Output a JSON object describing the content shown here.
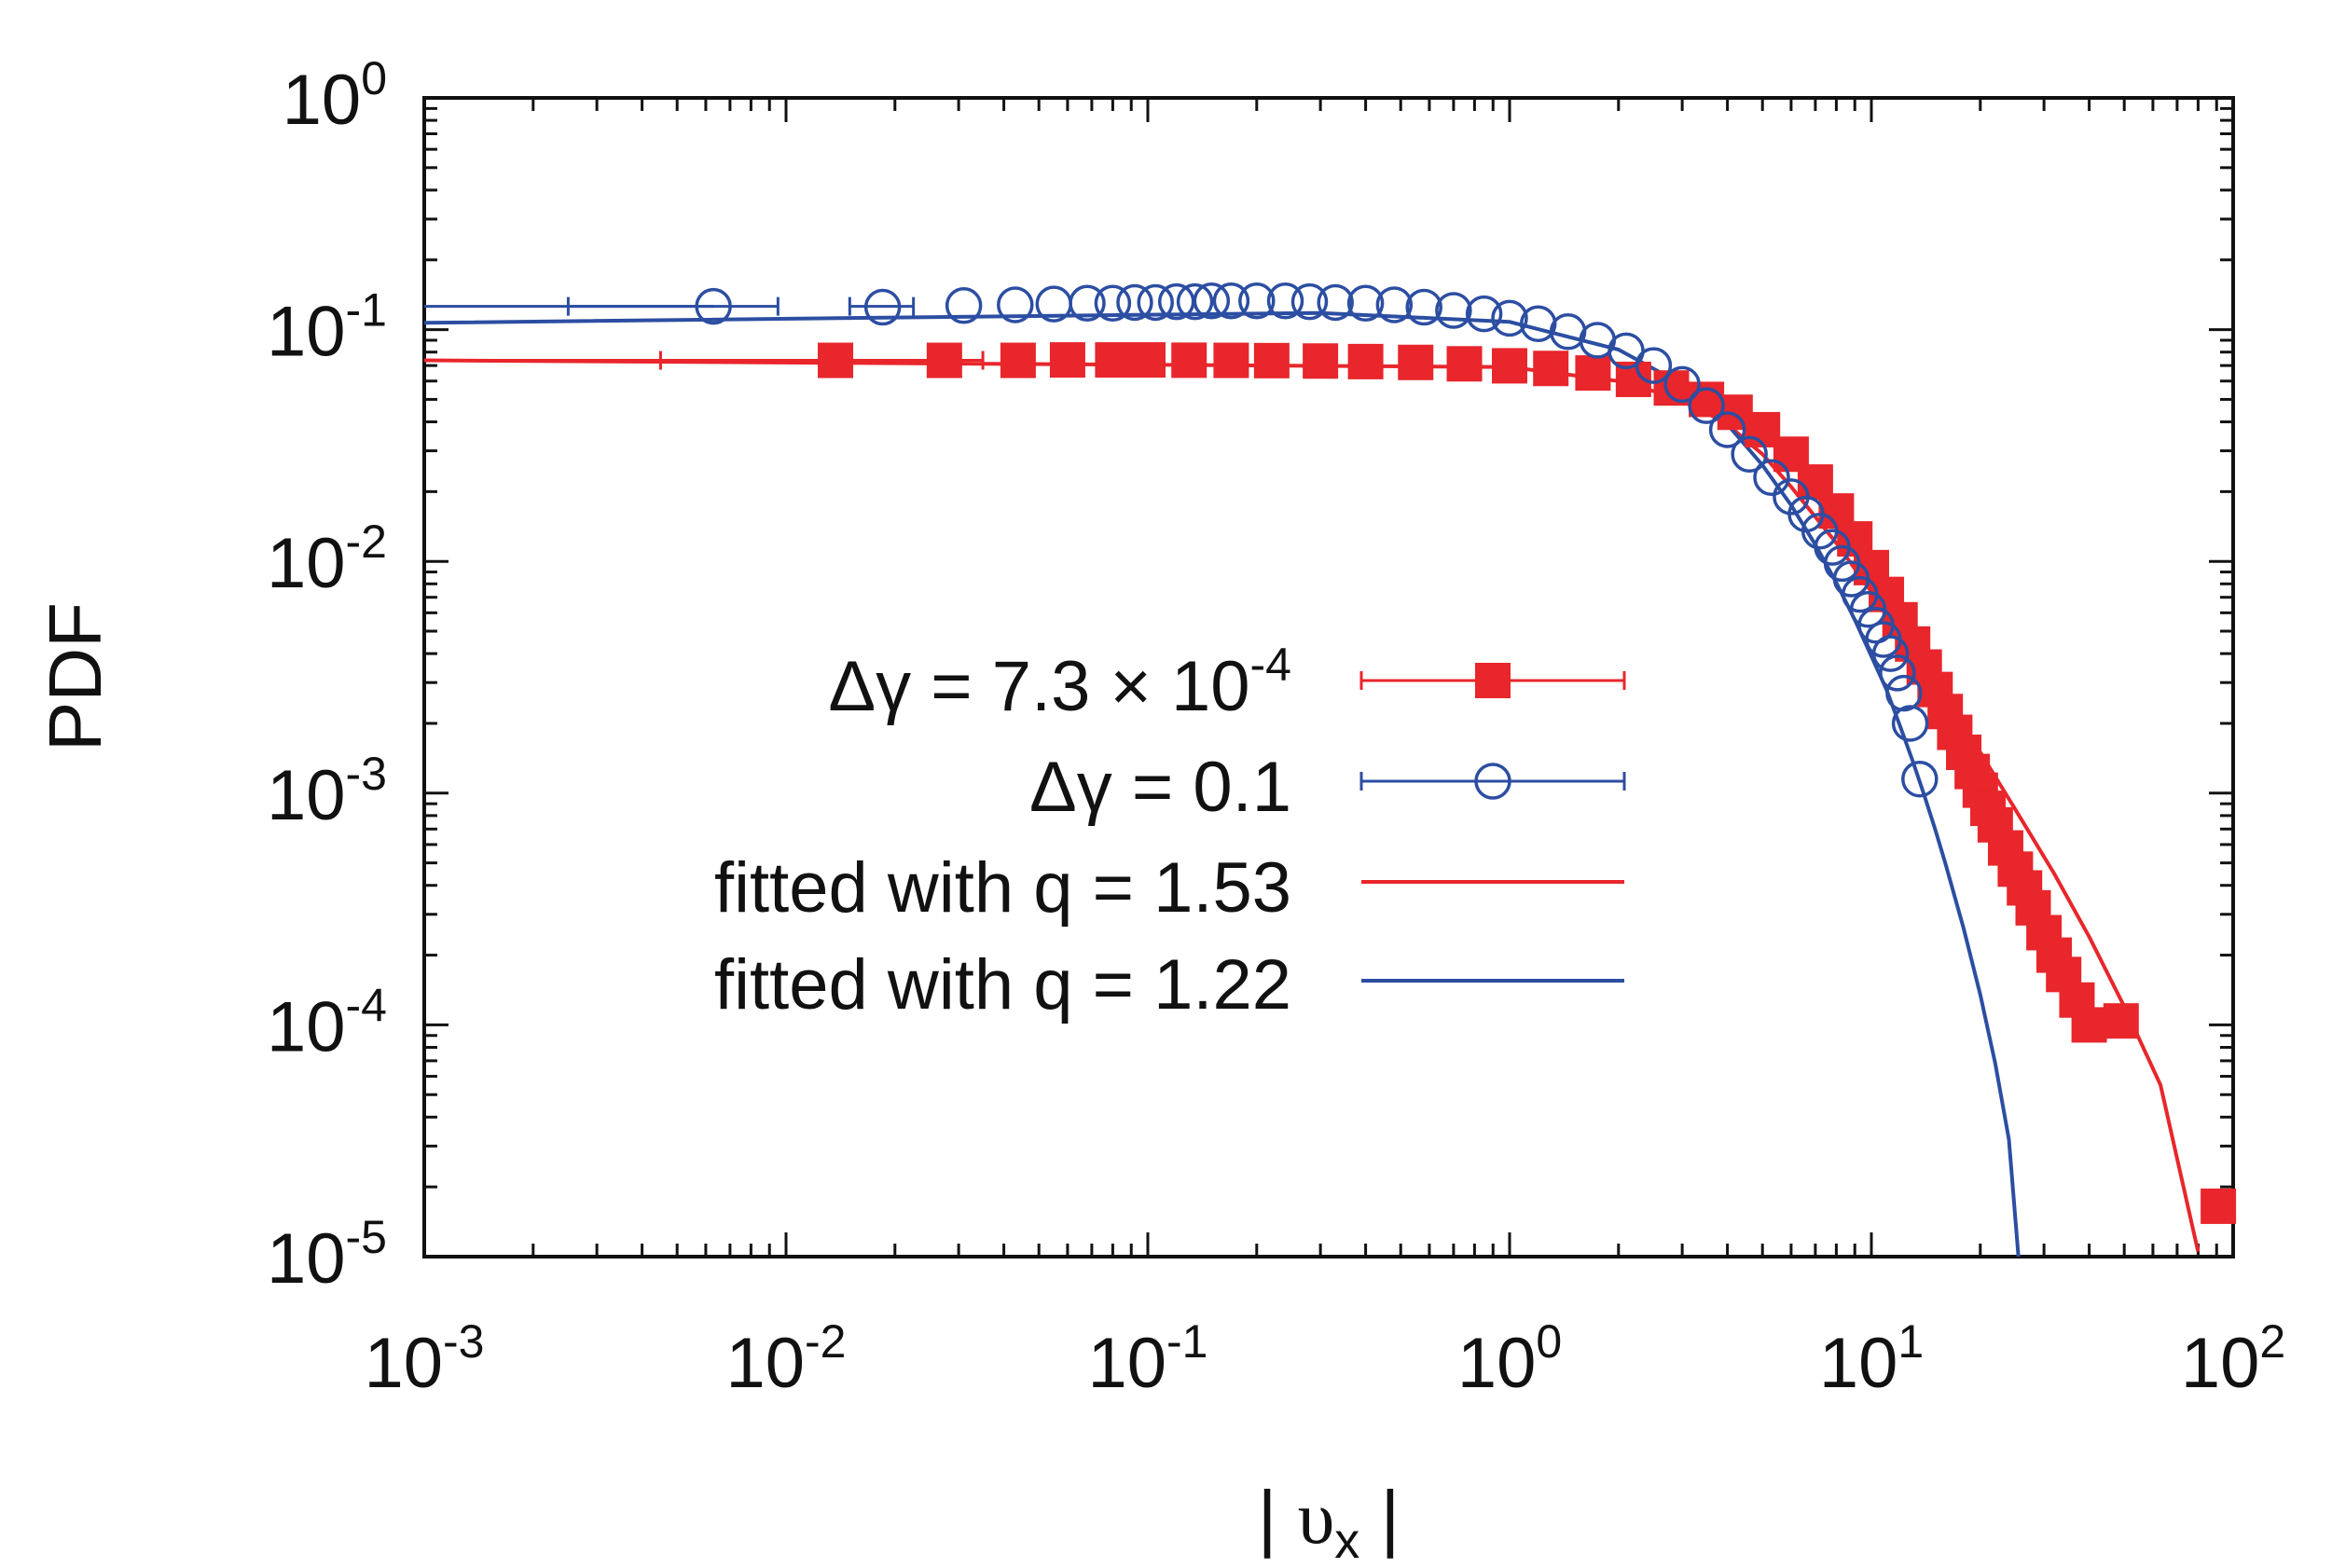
{
  "chart_data": {
    "type": "scatter",
    "title": "",
    "xlabel": "| υx |",
    "xlabel_parts": {
      "bar_left": "| ",
      "symbol": "υ",
      "subscript": "x",
      "bar_right": " |"
    },
    "ylabel": "PDF",
    "xscale": "log",
    "yscale": "log",
    "xlim": [
      0.001,
      100
    ],
    "ylim": [
      1e-05,
      1
    ],
    "grid": false,
    "legend_position": "center-left",
    "x_ticks": [
      {
        "value": 0.001,
        "base": "10",
        "exp": "-3"
      },
      {
        "value": 0.01,
        "base": "10",
        "exp": "-2"
      },
      {
        "value": 0.1,
        "base": "10",
        "exp": "-1"
      },
      {
        "value": 1,
        "base": "10",
        "exp": "0"
      },
      {
        "value": 10,
        "base": "10",
        "exp": "1"
      },
      {
        "value": 100,
        "base": "10",
        "exp": "2"
      }
    ],
    "y_ticks": [
      {
        "value": 1,
        "base": "10",
        "exp": "0"
      },
      {
        "value": 0.1,
        "base": "10",
        "exp": "-1"
      },
      {
        "value": 0.01,
        "base": "10",
        "exp": "-2"
      },
      {
        "value": 0.001,
        "base": "10",
        "exp": "-3"
      },
      {
        "value": 0.0001,
        "base": "10",
        "exp": "-4"
      },
      {
        "value": 1e-05,
        "base": "10",
        "exp": "-5"
      }
    ],
    "series": [
      {
        "name": "Δγ = 7.3 × 10-4",
        "legend_parts": {
          "main": "Δγ = 7.3 × 10",
          "exp": "-4"
        },
        "kind": "points",
        "marker": "filled-square",
        "color": "#e8262b",
        "x": [
          0.0137,
          0.0274,
          0.0438,
          0.06,
          0.08,
          0.1,
          0.13,
          0.17,
          0.22,
          0.3,
          0.4,
          0.55,
          0.75,
          1.0,
          1.3,
          1.7,
          2.2,
          2.8,
          3.5,
          4.2,
          5.0,
          6.0,
          7.0,
          8.0,
          9.0,
          10.0,
          11.0,
          12.0,
          13.0,
          14.0,
          15.0,
          16.0,
          17.0,
          18.0,
          19.0,
          20.0,
          21.0,
          22.0,
          23.5,
          25.0,
          26.5,
          28.0,
          30.0,
          32.0,
          34.0,
          37.0,
          40.0,
          49.0,
          91.0
        ],
        "y": [
          0.0737,
          0.0737,
          0.0737,
          0.074,
          0.074,
          0.074,
          0.0738,
          0.0737,
          0.0735,
          0.0732,
          0.0728,
          0.0722,
          0.0712,
          0.0698,
          0.068,
          0.065,
          0.061,
          0.056,
          0.05,
          0.044,
          0.037,
          0.029,
          0.022,
          0.0165,
          0.0125,
          0.0094,
          0.0072,
          0.0056,
          0.0044,
          0.0035,
          0.0028,
          0.00225,
          0.00183,
          0.0015,
          0.00124,
          0.00103,
          0.00086,
          0.00073,
          0.00058,
          0.00047,
          0.00039,
          0.00032,
          0.00025,
          0.0002,
          0.000165,
          0.000128,
          0.0001,
          0.000104,
          1.65e-05
        ],
        "x_err": [
          [
            0.0045,
            0.035
          ]
        ]
      },
      {
        "name": "Δγ = 0.1",
        "legend_parts": {
          "main": "Δγ = 0.1",
          "exp": ""
        },
        "kind": "points",
        "marker": "open-circle",
        "color": "#2c4ea2",
        "x": [
          0.0063,
          0.0185,
          0.031,
          0.043,
          0.055,
          0.068,
          0.08,
          0.092,
          0.105,
          0.12,
          0.135,
          0.15,
          0.17,
          0.2,
          0.24,
          0.28,
          0.33,
          0.4,
          0.48,
          0.58,
          0.7,
          0.85,
          1.0,
          1.2,
          1.45,
          1.75,
          2.1,
          2.5,
          3.0,
          3.5,
          4.0,
          4.6,
          5.3,
          6.0,
          6.6,
          7.2,
          7.8,
          8.3,
          8.8,
          9.3,
          9.8,
          10.3,
          10.8,
          11.3,
          11.8,
          12.3,
          12.8,
          13.6
        ],
        "y": [
          0.126,
          0.125,
          0.127,
          0.128,
          0.129,
          0.13,
          0.13,
          0.131,
          0.131,
          0.132,
          0.132,
          0.133,
          0.133,
          0.133,
          0.133,
          0.132,
          0.131,
          0.13,
          0.128,
          0.125,
          0.121,
          0.117,
          0.112,
          0.106,
          0.098,
          0.09,
          0.081,
          0.07,
          0.058,
          0.047,
          0.037,
          0.029,
          0.023,
          0.019,
          0.016,
          0.0135,
          0.0115,
          0.0098,
          0.0084,
          0.0072,
          0.0062,
          0.0053,
          0.0046,
          0.004,
          0.0033,
          0.0027,
          0.002,
          0.00115
        ],
        "x_err": [
          [
            0.0025,
            0.0095
          ],
          [
            0.015,
            0.0225
          ]
        ]
      },
      {
        "name": "fitted with q = 1.53",
        "legend_parts": {
          "main": "fitted with q = 1.53",
          "exp": ""
        },
        "kind": "line",
        "color": "#e8262b",
        "x": [
          0.001,
          1.0,
          2.0,
          3.0,
          4.0,
          5.0,
          6.0,
          8.0,
          10.0,
          13.0,
          16.0,
          20.0,
          25.0,
          32.0,
          40.0,
          50.0,
          63.0,
          80.0
        ],
        "y": [
          0.0737,
          0.069,
          0.06,
          0.05,
          0.039,
          0.029,
          0.021,
          0.012,
          0.0074,
          0.0043,
          0.0026,
          0.0015,
          0.00085,
          0.00045,
          0.00024,
          0.00012,
          5.5e-05,
          1.05e-05
        ]
      },
      {
        "name": "fitted with q = 1.22",
        "legend_parts": {
          "main": "fitted with q = 1.22",
          "exp": ""
        },
        "kind": "line",
        "color": "#2c4ea2",
        "x": [
          0.001,
          0.1,
          0.3,
          1.0,
          2.0,
          3.0,
          4.0,
          5.0,
          6.0,
          7.0,
          8.0,
          9.0,
          10.0,
          11.0,
          12.0,
          13.0,
          14.0,
          15.0,
          16.0,
          18.0,
          20.0,
          22.0,
          24.0,
          25.5
        ],
        "y": [
          0.107,
          0.116,
          0.118,
          0.108,
          0.082,
          0.058,
          0.039,
          0.026,
          0.0175,
          0.0118,
          0.0081,
          0.0056,
          0.0039,
          0.0028,
          0.00195,
          0.00138,
          0.00098,
          0.0007,
          0.0005,
          0.00026,
          0.000135,
          6.8e-05,
          3.2e-05,
          1e-05
        ]
      }
    ]
  }
}
